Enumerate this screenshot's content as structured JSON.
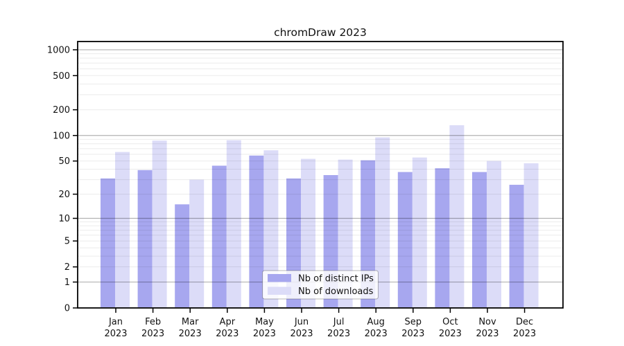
{
  "title": "chromDraw 2023",
  "chart_data": {
    "type": "bar",
    "title": "chromDraw 2023",
    "categories": [
      "Jan",
      "Feb",
      "Mar",
      "Apr",
      "May",
      "Jun",
      "Jul",
      "Aug",
      "Sep",
      "Oct",
      "Nov",
      "Dec"
    ],
    "category_year": "2023",
    "series": [
      {
        "name": "Nb of distinct IPs",
        "color": "#a7a7ef",
        "values": [
          31,
          39,
          15,
          44,
          58,
          31,
          34,
          51,
          37,
          41,
          37,
          26
        ]
      },
      {
        "name": "Nb of downloads",
        "color": "#dcdcf8",
        "values": [
          64,
          87,
          30,
          88,
          67,
          53,
          52,
          95,
          55,
          132,
          50,
          47
        ]
      }
    ],
    "xlabel": "",
    "ylabel": "",
    "y_axis": {
      "scale": "log1p",
      "ylim": [
        0,
        1000
      ],
      "ticks": [
        0,
        1,
        2,
        5,
        10,
        20,
        50,
        100,
        200,
        500,
        1000
      ],
      "minor_mantissas": [
        2,
        3,
        4,
        5,
        6,
        7,
        8,
        9
      ],
      "minor_decades": [
        1,
        10,
        100
      ]
    },
    "grid": {
      "enabled": true,
      "major_rgba": "rgba(0,0,0,0.30)",
      "minor_rgba": "rgba(0,0,0,0.08)"
    },
    "legend": {
      "position": "inside-bottom-center",
      "entries": [
        {
          "label": "Nb of distinct IPs",
          "color": "#a7a7ef"
        },
        {
          "label": "Nb of downloads",
          "color": "#dcdcf8"
        }
      ]
    },
    "colors": {
      "axis": "#000000",
      "background": "#ffffff",
      "legend_border": "rgba(0,0,0,0.28)",
      "legend_background": "rgba(255,255,255,0.82)"
    }
  }
}
